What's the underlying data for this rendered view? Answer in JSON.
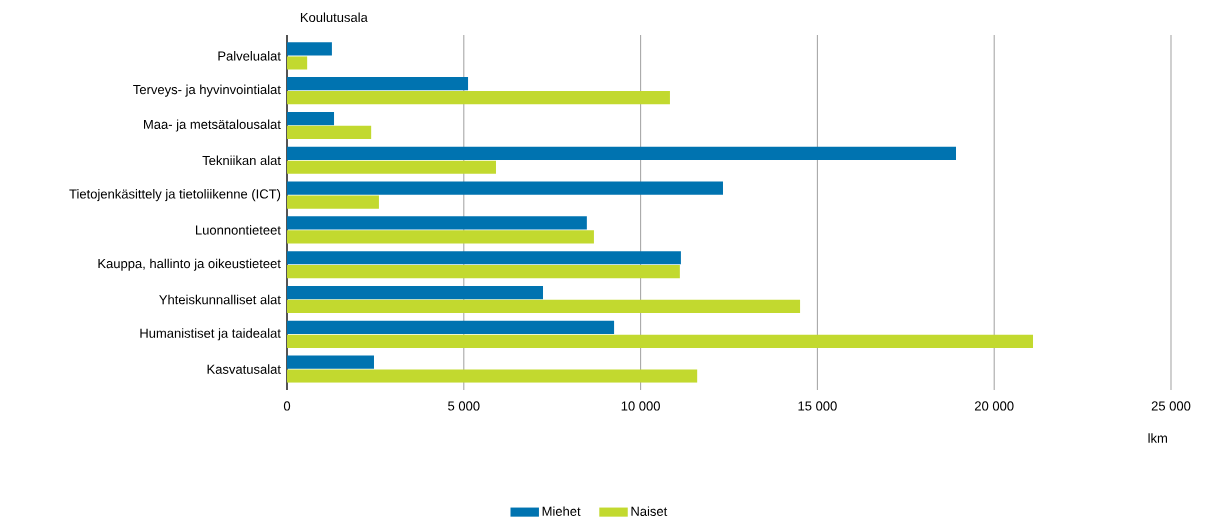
{
  "chart_data": {
    "type": "bar",
    "orientation": "horizontal",
    "xlabel": "lkm",
    "ylabel": "Koulutusala",
    "categories": [
      "Palvelualat",
      "Terveys- ja hyvinvointialat",
      "Maa- ja metsätalousalat",
      "Tekniikan alat",
      "Tietojenkäsittely ja tietoliikenne (ICT)",
      "Luonnontieteet",
      "Kauppa, hallinto ja oikeustieteet",
      "Yhteiskunnalliset alat",
      "Humanistiset ja taidealat",
      "Kasvatusalat"
    ],
    "series": [
      {
        "name": "Miehet",
        "color": "#0073b0",
        "values": [
          1270,
          5120,
          1330,
          18920,
          12330,
          8480,
          11140,
          7240,
          9250,
          2460
        ]
      },
      {
        "name": "Naiset",
        "color": "#c2d92f",
        "values": [
          570,
          10830,
          2380,
          5910,
          2600,
          8680,
          11110,
          14510,
          21100,
          11600
        ]
      }
    ],
    "xlim": [
      0,
      25000
    ],
    "xticks": [
      0,
      {
        "value": 5000,
        "label": "5 000"
      },
      {
        "value": 10000,
        "label": "10 000"
      },
      {
        "value": 15000,
        "label": "15 000"
      },
      {
        "value": 20000,
        "label": "20 000"
      },
      {
        "value": 25000,
        "label": "25 000"
      }
    ],
    "grid": "x",
    "legend": "bottom"
  }
}
